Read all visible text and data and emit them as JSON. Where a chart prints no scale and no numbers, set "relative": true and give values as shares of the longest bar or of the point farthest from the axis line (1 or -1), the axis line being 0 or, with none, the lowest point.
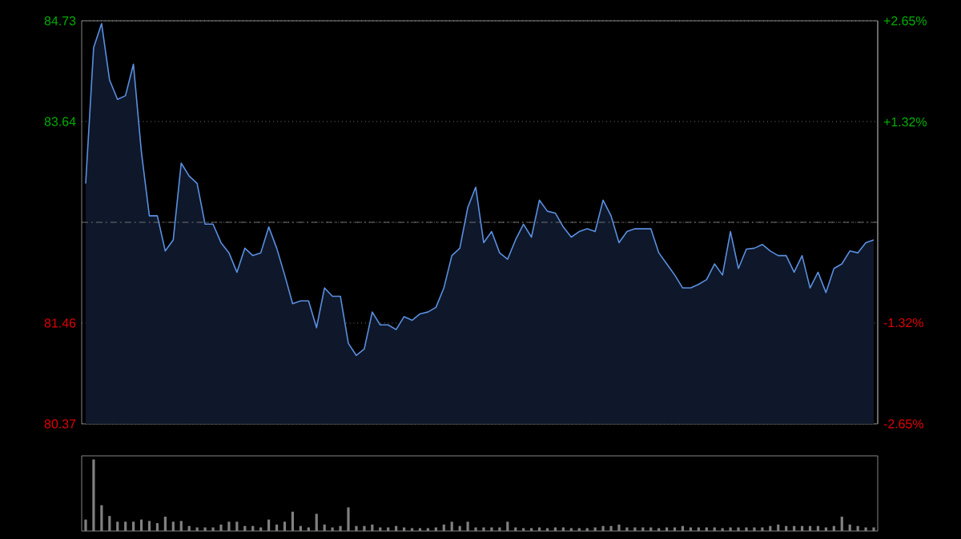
{
  "chart_data": [
    {
      "type": "area",
      "categories": [
        null,
        null,
        null,
        null,
        null,
        null,
        null,
        null,
        null,
        null,
        null,
        null,
        null,
        null,
        null,
        null,
        null,
        null,
        null,
        null,
        null,
        null,
        null,
        null,
        null,
        null,
        null,
        null,
        null,
        null,
        null,
        null,
        null,
        null,
        null,
        null,
        null,
        null,
        null,
        null,
        null,
        null,
        null,
        null,
        null,
        null,
        null,
        null,
        null,
        null,
        null,
        null,
        null,
        null,
        null,
        null,
        null,
        null,
        null,
        null,
        null,
        null,
        null,
        null,
        null,
        null,
        null,
        null,
        null,
        null,
        null,
        null,
        null,
        null,
        null,
        null,
        null,
        null,
        null,
        null,
        null,
        null,
        null,
        null,
        null,
        null,
        null,
        null,
        null,
        null,
        null,
        null,
        null,
        null,
        null,
        null,
        null,
        null,
        null,
        null
      ],
      "values": [
        82.97,
        84.44,
        84.7,
        84.09,
        83.88,
        83.92,
        84.26,
        83.31,
        82.62,
        82.62,
        82.24,
        82.36,
        83.19,
        83.05,
        82.97,
        82.53,
        82.53,
        82.33,
        82.22,
        82.01,
        82.27,
        82.19,
        82.22,
        82.5,
        82.27,
        81.98,
        81.67,
        81.7,
        81.7,
        81.41,
        81.84,
        81.75,
        81.75,
        81.24,
        81.11,
        81.18,
        81.58,
        81.44,
        81.44,
        81.39,
        81.53,
        81.49,
        81.56,
        81.58,
        81.63,
        81.84,
        82.19,
        82.27,
        82.71,
        82.93,
        82.33,
        82.45,
        82.22,
        82.15,
        82.36,
        82.53,
        82.39,
        82.79,
        82.67,
        82.65,
        82.5,
        82.39,
        82.45,
        82.48,
        82.45,
        82.79,
        82.62,
        82.33,
        82.45,
        82.48,
        82.48,
        82.48,
        82.22,
        82.1,
        81.98,
        81.84,
        81.84,
        81.88,
        81.93,
        82.1,
        81.98,
        82.45,
        82.05,
        82.26,
        82.27,
        82.31,
        82.24,
        82.19,
        82.19,
        82.01,
        82.19,
        81.84,
        82.01,
        81.79,
        82.05,
        82.1,
        82.24,
        82.22,
        82.33,
        82.36
      ],
      "color": "#5b8fe0",
      "ylim": [
        80.37,
        84.73
      ],
      "yticks": [
        84.73,
        83.64,
        {
          "value": 82.55,
          "label": null
        },
        81.46,
        80.37
      ],
      "y2lim": [
        -2.65,
        2.65
      ],
      "y2ticks": [
        {
          "value": 2.65,
          "label": "+2.65%"
        },
        {
          "value": 1.32,
          "label": "+1.32%"
        },
        {
          "value": 0,
          "label": null
        },
        {
          "value": -1.32,
          "label": "-1.32%"
        },
        {
          "value": -2.65,
          "label": "-2.65%"
        }
      ],
      "grid": "y",
      "ref_lines": [
        {
          "axis": "y",
          "value": 82.55,
          "color": "#8a8a8a",
          "line_style": "dashed"
        }
      ]
    },
    {
      "type": "bar",
      "relative": true,
      "color": "#808080",
      "categories": [
        null,
        null,
        null,
        null,
        null,
        null,
        null,
        null,
        null,
        null,
        null,
        null,
        null,
        null,
        null,
        null,
        null,
        null,
        null,
        null,
        null,
        null,
        null,
        null,
        null,
        null,
        null,
        null,
        null,
        null,
        null,
        null,
        null,
        null,
        null,
        null,
        null,
        null,
        null,
        null,
        null,
        null,
        null,
        null,
        null,
        null,
        null,
        null,
        null,
        null,
        null,
        null,
        null,
        null,
        null,
        null,
        null,
        null,
        null,
        null,
        null,
        null,
        null,
        null,
        null,
        null,
        null,
        null,
        null,
        null,
        null,
        null,
        null,
        null,
        null,
        null,
        null,
        null,
        null,
        null,
        null,
        null,
        null,
        null,
        null,
        null,
        null,
        null,
        null,
        null,
        null,
        null,
        null,
        null,
        null,
        null,
        null,
        null,
        null,
        null
      ],
      "values": [
        0.16,
        1.0,
        0.36,
        0.21,
        0.13,
        0.13,
        0.13,
        0.16,
        0.14,
        0.11,
        0.2,
        0.13,
        0.14,
        0.07,
        0.05,
        0.05,
        0.05,
        0.09,
        0.13,
        0.13,
        0.07,
        0.07,
        0.05,
        0.16,
        0.09,
        0.13,
        0.27,
        0.07,
        0.05,
        0.24,
        0.09,
        0.05,
        0.07,
        0.33,
        0.07,
        0.07,
        0.09,
        0.05,
        0.05,
        0.07,
        0.05,
        0.04,
        0.04,
        0.04,
        0.05,
        0.09,
        0.13,
        0.07,
        0.13,
        0.05,
        0.05,
        0.05,
        0.05,
        0.13,
        0.05,
        0.04,
        0.04,
        0.05,
        0.04,
        0.05,
        0.05,
        0.04,
        0.04,
        0.04,
        0.05,
        0.07,
        0.07,
        0.09,
        0.05,
        0.05,
        0.05,
        0.05,
        0.04,
        0.05,
        0.05,
        0.07,
        0.05,
        0.05,
        0.05,
        0.05,
        0.04,
        0.05,
        0.05,
        0.05,
        0.05,
        0.05,
        0.07,
        0.09,
        0.07,
        0.07,
        0.07,
        0.07,
        0.07,
        0.05,
        0.07,
        0.2,
        0.09,
        0.07,
        0.05,
        0.05
      ]
    }
  ]
}
